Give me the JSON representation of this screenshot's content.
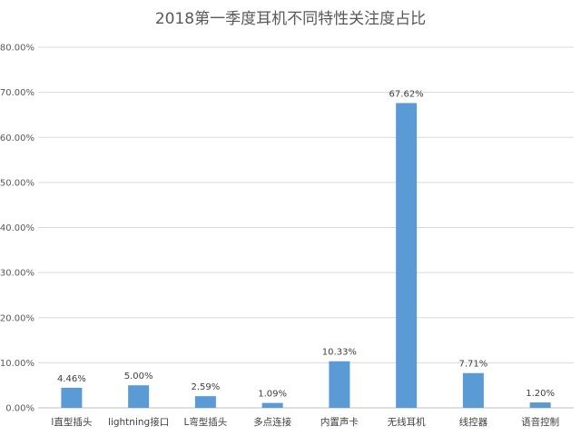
{
  "chart_data": {
    "type": "bar",
    "title": "2018第一季度耳机不同特性关注度占比",
    "categories": [
      "l直型插头",
      "lightning接口",
      "L弯型插头",
      "多点连接",
      "内置声卡",
      "无线耳机",
      "线控器",
      "语音控制"
    ],
    "values": [
      4.46,
      5.0,
      2.59,
      1.09,
      10.33,
      67.62,
      7.71,
      1.2
    ],
    "data_labels": [
      "4.46%",
      "5.00%",
      "2.59%",
      "1.09%",
      "10.33%",
      "67.62%",
      "7.71%",
      "1.20%"
    ],
    "y_ticks": [
      0,
      10,
      20,
      30,
      40,
      50,
      60,
      70,
      80
    ],
    "y_tick_labels": [
      "0.00%",
      "10.00%",
      "20.00%",
      "30.00%",
      "40.00%",
      "50.00%",
      "60.00%",
      "70.00%",
      "80.00%"
    ],
    "ylim": [
      0,
      80
    ],
    "grid": true,
    "legend": "none",
    "bar_color": "#5b9bd5",
    "xlabel": "",
    "ylabel": ""
  }
}
